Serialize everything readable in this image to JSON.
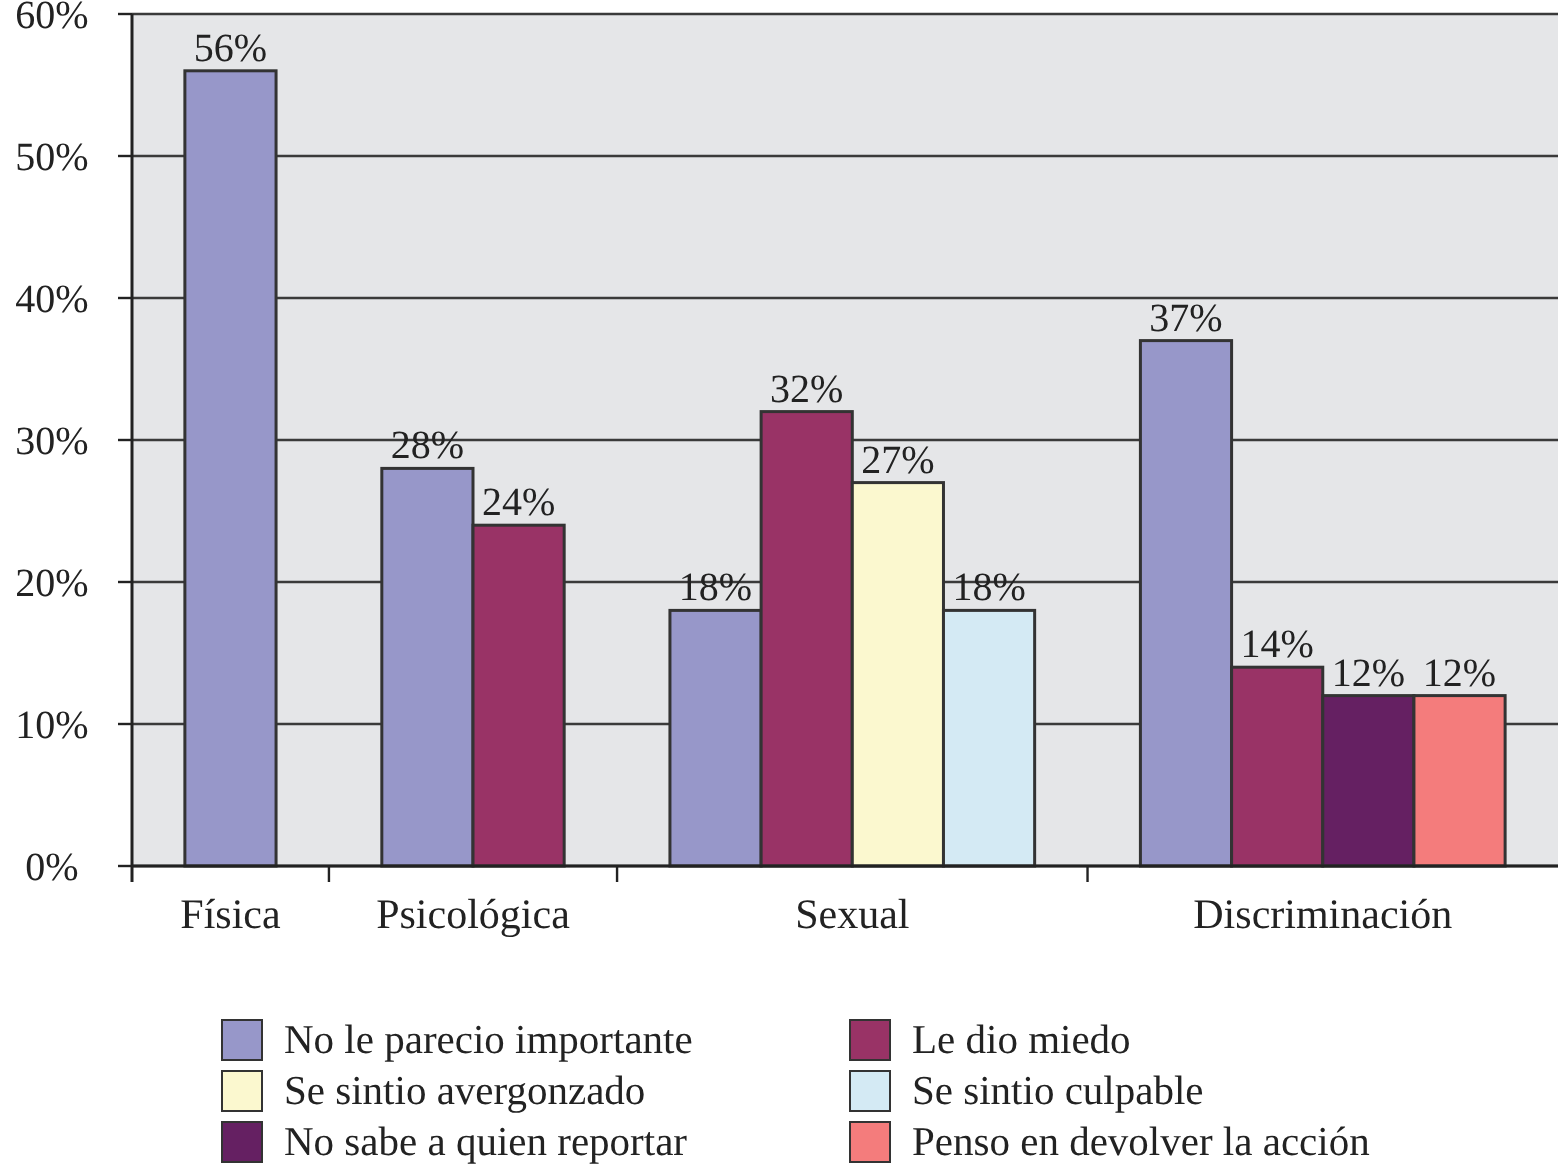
{
  "chart_data": {
    "type": "bar",
    "categories": [
      "Física",
      "Psicológica",
      "Sexual",
      "Discriminación"
    ],
    "series": [
      {
        "name": "No le parecio importante",
        "color": "#9797c9",
        "values": [
          56,
          28,
          18,
          37
        ],
        "value_labels": [
          "56%",
          "28%",
          "18%",
          "37%"
        ]
      },
      {
        "name": "Le dio miedo",
        "color": "#993366",
        "values": [
          null,
          24,
          32,
          14
        ],
        "value_labels": [
          null,
          "24%",
          "32%",
          "14%"
        ]
      },
      {
        "name": "Se sintio avergonzado",
        "color": "#fbf8cf",
        "values": [
          null,
          null,
          27,
          null
        ],
        "value_labels": [
          null,
          null,
          "27%",
          null
        ]
      },
      {
        "name": "Se sintio culpable",
        "color": "#d4eaf4",
        "values": [
          null,
          null,
          18,
          null
        ],
        "value_labels": [
          null,
          null,
          "18%",
          null
        ]
      },
      {
        "name": "No sabe a quien reportar",
        "color": "#652062",
        "values": [
          null,
          null,
          null,
          12
        ],
        "value_labels": [
          null,
          null,
          null,
          "12%"
        ]
      },
      {
        "name": "Penso en devolver la acción",
        "color": "#f47c7c",
        "values": [
          null,
          null,
          null,
          12
        ],
        "value_labels": [
          null,
          null,
          null,
          "12%"
        ]
      }
    ],
    "ylim": [
      0,
      60
    ],
    "yticks": [
      {
        "value": 0,
        "label": "0%"
      },
      {
        "value": 10,
        "label": "10%"
      },
      {
        "value": 20,
        "label": "20%"
      },
      {
        "value": 30,
        "label": "30%"
      },
      {
        "value": 40,
        "label": "40%"
      },
      {
        "value": 50,
        "label": "50%"
      },
      {
        "value": 60,
        "label": "60%"
      }
    ],
    "grid": "y",
    "legend": "bottom"
  }
}
